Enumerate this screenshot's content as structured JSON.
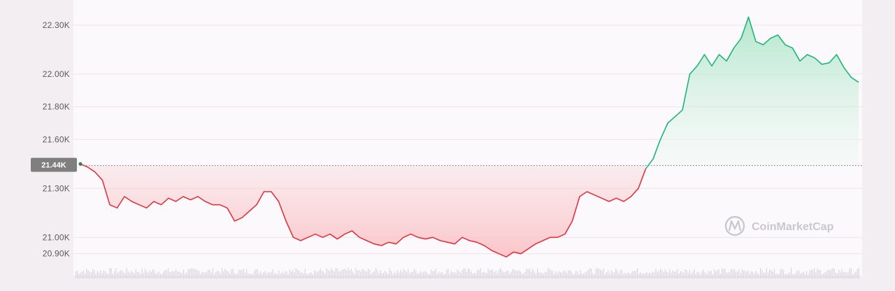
{
  "chart_data": {
    "type": "area",
    "yticks": [
      "22.30K",
      "22.00K",
      "21.80K",
      "21.60K",
      "21.30K",
      "21.00K",
      "20.90K"
    ],
    "ytick_values": [
      22.3,
      22.0,
      21.8,
      21.6,
      21.3,
      21.0,
      20.9
    ],
    "ylim": [
      20.86,
      22.36
    ],
    "reference": {
      "label": "21.44K",
      "value": 21.44
    },
    "y": [
      21.45,
      21.43,
      21.4,
      21.35,
      21.2,
      21.18,
      21.25,
      21.22,
      21.2,
      21.18,
      21.22,
      21.2,
      21.24,
      21.22,
      21.25,
      21.23,
      21.25,
      21.22,
      21.2,
      21.2,
      21.18,
      21.1,
      21.12,
      21.16,
      21.2,
      21.28,
      21.28,
      21.22,
      21.1,
      21.0,
      20.98,
      21.0,
      21.02,
      21.0,
      21.02,
      20.99,
      21.02,
      21.04,
      21.0,
      20.98,
      20.96,
      20.95,
      20.97,
      20.96,
      21.0,
      21.02,
      21.0,
      20.99,
      21.0,
      20.98,
      20.97,
      20.96,
      21.0,
      20.98,
      20.97,
      20.95,
      20.92,
      20.9,
      20.88,
      20.91,
      20.9,
      20.93,
      20.96,
      20.98,
      21.0,
      21.0,
      21.02,
      21.1,
      21.25,
      21.28,
      21.26,
      21.24,
      21.22,
      21.24,
      21.22,
      21.25,
      21.3,
      21.42,
      21.48,
      21.6,
      21.7,
      21.74,
      21.78,
      22.0,
      22.05,
      22.12,
      22.05,
      22.12,
      22.08,
      22.16,
      22.22,
      22.35,
      22.2,
      22.18,
      22.22,
      22.24,
      22.18,
      22.16,
      22.08,
      22.12,
      22.1,
      22.06,
      22.07,
      22.12,
      22.04,
      21.98,
      21.95
    ],
    "start_color": "#e0343f",
    "positive_color": "#1fb57a"
  },
  "watermark": {
    "text": "CoinMarketCap",
    "icon": "coinmarketcap-logo-icon"
  }
}
